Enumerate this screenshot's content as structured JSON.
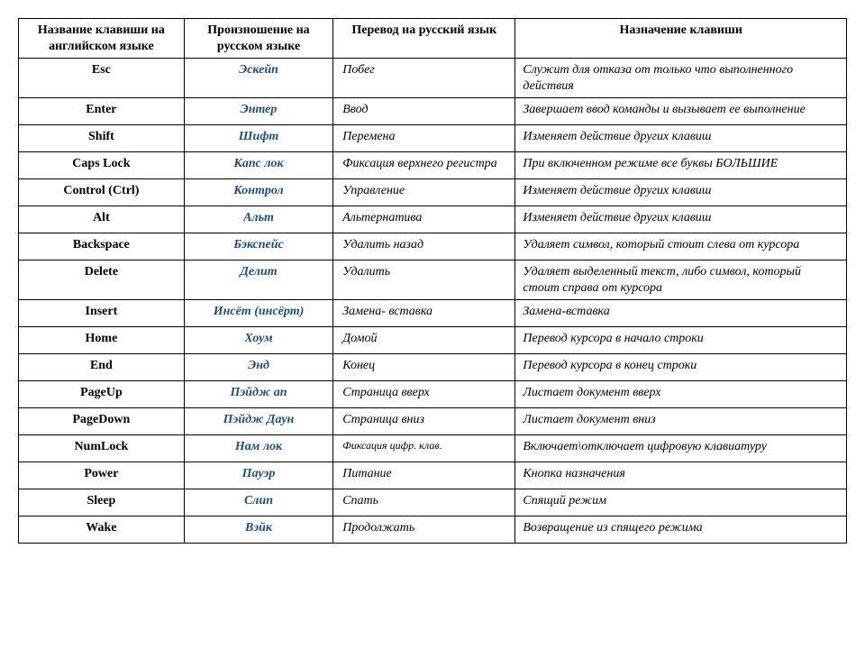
{
  "table": {
    "headers": [
      "Название клавиши на английском языке",
      "Произношение на русском языке",
      "Перевод на русский язык",
      "Назначение клавиши"
    ],
    "rows": [
      {
        "key": "Esc",
        "pron": "Эскейп",
        "trans": "Побег",
        "desc": "Служит для отказа от только что выполненного действия"
      },
      {
        "key": "Enter",
        "pron": "Энтер",
        "trans": "Ввод",
        "desc": "Завершает ввод команды и вызывает ее выполнение"
      },
      {
        "key": "Shift",
        "pron": "Шифт",
        "trans": "Перемена",
        "desc": "Изменяет действие других клавиш"
      },
      {
        "key": "Caps Lock",
        "pron": "Капс лок",
        "trans": "Фиксация верхнего регистра",
        "desc": "При включенном режиме все буквы БОЛЬШИЕ"
      },
      {
        "key": "Control (Ctrl)",
        "pron": "Контрол",
        "trans": "Управление",
        "desc": "Изменяет действие других клавиш"
      },
      {
        "key": "Alt",
        "pron": "Альт",
        "trans": "Альтернатива",
        "desc": "Изменяет действие других клавиш"
      },
      {
        "key": "Backspace",
        "pron": "Бэкспейс",
        "trans": "Удалить назад",
        "desc": "Удаляет символ, который стоит слева от курсора"
      },
      {
        "key": "Delete",
        "pron": "Делит",
        "trans": "Удалить",
        "desc": "Удаляет выделенный текст, либо символ, который стоит справа от курсора"
      },
      {
        "key": "Insert",
        "pron": "Инсёт (инсёрт)",
        "trans": "Замена- вставка",
        "desc": "Замена-вставка"
      },
      {
        "key": "Home",
        "pron": "Хоум",
        "trans": "Домой",
        "desc": "Перевод курсора в начало строки"
      },
      {
        "key": "End",
        "pron": "Энд",
        "trans": "Конец",
        "desc": "Перевод курсора в конец строки"
      },
      {
        "key": "PageUp",
        "pron": "Пэйдж ап",
        "trans": "Страница вверх",
        "desc": "Листает документ вверх"
      },
      {
        "key": "PageDown",
        "pron": "Пэйдж Даун",
        "trans": "Страница вниз",
        "desc": "Листает документ вниз"
      },
      {
        "key": "NumLock",
        "pron": "Нам лок",
        "trans": "Фиксация цифр. клав.",
        "trans_small": true,
        "desc": "Включает\\отключает цифровую клавиатуру"
      },
      {
        "key": "Power",
        "pron": "Пауэр",
        "trans": "Питание",
        "desc": "Кнопка назначения"
      },
      {
        "key": "Sleep",
        "pron": "Слип",
        "trans": "Спать",
        "desc": "Спящий режим"
      },
      {
        "key": "Wake",
        "pron": "Вэйк",
        "trans": "Продолжать",
        "desc": "Возвращение из спящего режима"
      }
    ],
    "colors": {
      "pron_color": "#1f4e79",
      "border_color": "#000000",
      "background": "#ffffff"
    },
    "font": {
      "family": "Times New Roman",
      "header_size_pt": 11,
      "cell_size_pt": 11
    }
  }
}
